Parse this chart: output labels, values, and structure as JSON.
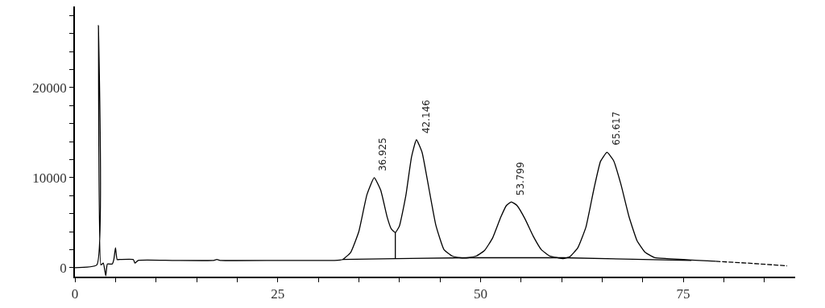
{
  "chart_data": {
    "type": "line",
    "xlim": [
      0,
      88.8
    ],
    "ylim": [
      -1000,
      29000
    ],
    "xticks": [
      0,
      {
        "value": 5,
        "label": null
      },
      {
        "value": 10,
        "label": null
      },
      {
        "value": 15,
        "label": null
      },
      {
        "value": 20,
        "label": null
      },
      25,
      {
        "value": 30,
        "label": null
      },
      {
        "value": 35,
        "label": null
      },
      {
        "value": 40,
        "label": null
      },
      {
        "value": 45,
        "label": null
      },
      50,
      {
        "value": 55,
        "label": null
      },
      {
        "value": 60,
        "label": null
      },
      {
        "value": 65,
        "label": null
      },
      {
        "value": 70,
        "label": null
      },
      75,
      {
        "value": 80,
        "label": null
      },
      {
        "value": 85,
        "label": null
      }
    ],
    "yticks": [
      0,
      {
        "value": 2000,
        "label": null
      },
      {
        "value": 4000,
        "label": null
      },
      {
        "value": 6000,
        "label": null
      },
      {
        "value": 8000,
        "label": null
      },
      10000,
      {
        "value": 12000,
        "label": null
      },
      {
        "value": 14000,
        "label": null
      },
      {
        "value": 16000,
        "label": null
      },
      {
        "value": 18000,
        "label": null
      },
      20000,
      {
        "value": 22000,
        "label": null
      },
      {
        "value": 24000,
        "label": null
      },
      {
        "value": 26000,
        "label": null
      },
      {
        "value": 28000,
        "label": null
      }
    ],
    "series": [
      {
        "color": "#000000",
        "line_style": "solid",
        "x": [
          0,
          2.7,
          2.9,
          3.2,
          3.5,
          3.8,
          4.0,
          4.6,
          4.8,
          5.0,
          5.2,
          5.5,
          7.2,
          7.4,
          7.8,
          12,
          17.0,
          17.5,
          18.0,
          25,
          32.0,
          33.0,
          34.0,
          35.0,
          36.0,
          36.9,
          37.7,
          38.5,
          39.0,
          39.5,
          40.0,
          40.8,
          41.5,
          42.1,
          42.8,
          43.6,
          44.5,
          45.5,
          46.5,
          47.5,
          48.5,
          49.5,
          50.5,
          51.5,
          52.5,
          53.2,
          53.8,
          54.5,
          55.5,
          56.5,
          57.5,
          58.5,
          59.5,
          60.2,
          61.0,
          62.0,
          63.0,
          64.0,
          64.8,
          65.6,
          66.4,
          67.3,
          68.3,
          69.3,
          70.3,
          71.5,
          73.0,
          75.0,
          77.0,
          79.0
        ],
        "values": [
          0,
          300,
          26900,
          300,
          500,
          -900,
          400,
          400,
          900,
          2200,
          900,
          900,
          900,
          500,
          800,
          800,
          800,
          900,
          800,
          800,
          800,
          900,
          1700,
          4000,
          8100,
          10000,
          8600,
          5600,
          4300,
          3900,
          4600,
          8000,
          12300,
          14200,
          12800,
          9000,
          4700,
          2000,
          1300,
          1100,
          1100,
          1300,
          1900,
          3300,
          5600,
          6900,
          7300,
          6900,
          5400,
          3500,
          2000,
          1300,
          1100,
          1000,
          1200,
          2200,
          4500,
          8800,
          11800,
          12800,
          11900,
          9300,
          5700,
          3000,
          1700,
          1100,
          1000,
          900,
          800,
          700
        ]
      },
      {
        "color": "#000000",
        "line_style": "dashed",
        "x": [
          79.0,
          83.0,
          87.8
        ],
        "values": [
          700,
          500,
          200
        ]
      },
      {
        "color": "#000000",
        "line_style": "solid",
        "x": [
          33.0,
          39.5,
          48.5,
          60.2,
          76.0
        ],
        "values": [
          900,
          1000,
          1100,
          1100,
          800
        ]
      },
      {
        "color": "#000000",
        "line_style": "solid",
        "x": [
          39.5,
          39.5
        ],
        "values": [
          1000,
          3900
        ]
      }
    ],
    "annotations": [
      {
        "text": "36.925",
        "x": 36.925,
        "y": 9950
      },
      {
        "text": "42.146",
        "x": 42.146,
        "y": 14200
      },
      {
        "text": "53.799",
        "x": 53.799,
        "y": 7250
      },
      {
        "text": "65.617",
        "x": 65.617,
        "y": 12830
      }
    ]
  }
}
